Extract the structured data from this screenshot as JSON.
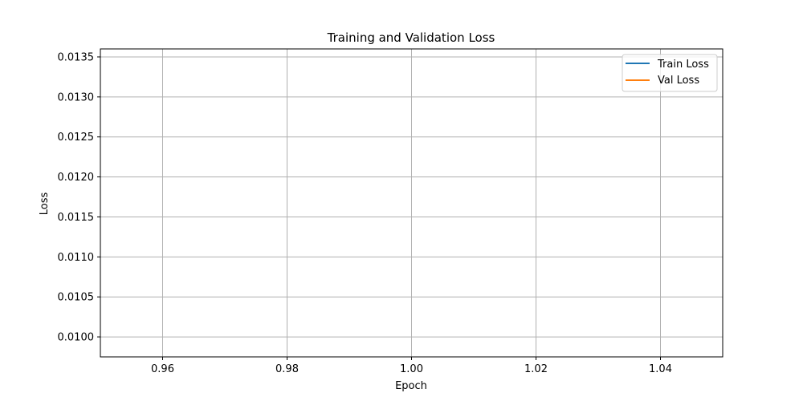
{
  "chart_data": {
    "type": "line",
    "title": "Training and Validation Loss",
    "xlabel": "Epoch",
    "ylabel": "Loss",
    "xlim": [
      0.95,
      1.05
    ],
    "ylim": [
      0.00975,
      0.0136
    ],
    "xticks": [
      0.96,
      0.98,
      1.0,
      1.02,
      1.04
    ],
    "xtick_labels": [
      "0.96",
      "0.98",
      "1.00",
      "1.02",
      "1.04"
    ],
    "yticks": [
      0.01,
      0.0105,
      0.011,
      0.0115,
      0.012,
      0.0125,
      0.013,
      0.0135
    ],
    "ytick_labels": [
      "0.0100",
      "0.0105",
      "0.0110",
      "0.0115",
      "0.0120",
      "0.0125",
      "0.0130",
      "0.0135"
    ],
    "grid": true,
    "legend_position": "top-right",
    "series": [
      {
        "name": "Train Loss",
        "color": "#1f77b4",
        "x": [],
        "y": []
      },
      {
        "name": "Val Loss",
        "color": "#ff7f0e",
        "x": [],
        "y": []
      }
    ]
  }
}
